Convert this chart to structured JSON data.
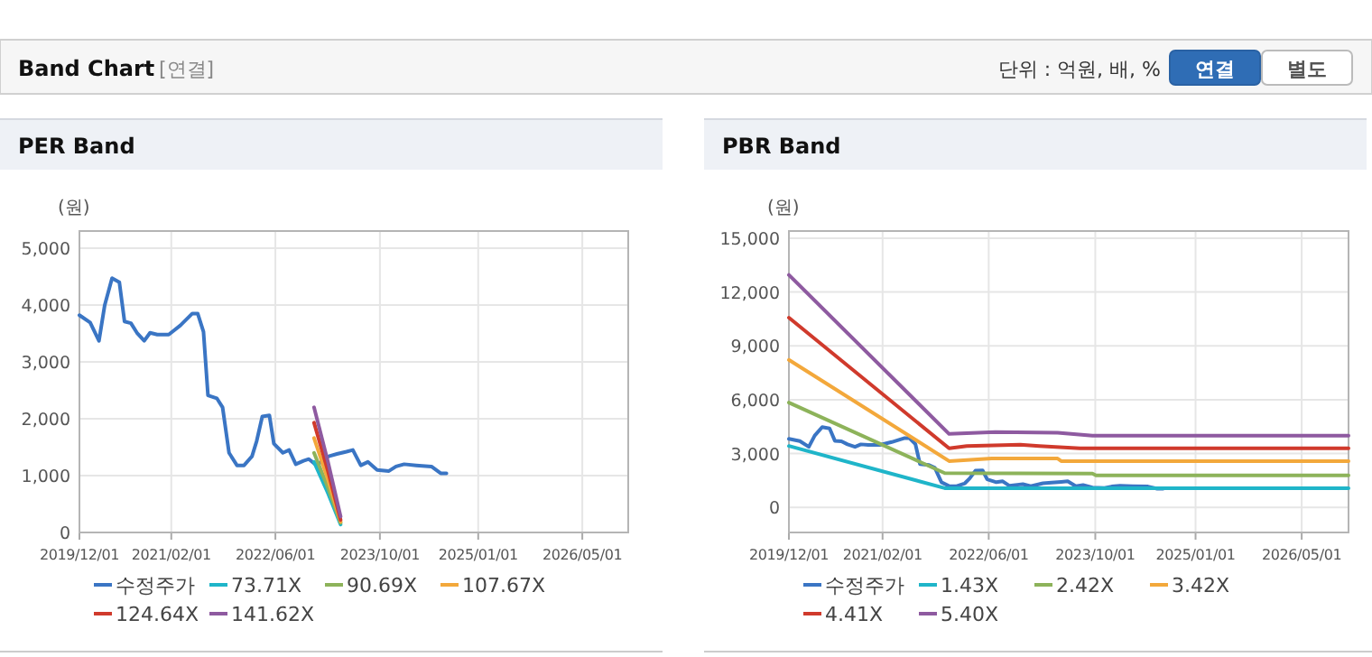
{
  "chart_data": [
    {
      "type": "other",
      "title": "Band Chart",
      "annotations": [
        "[연결]",
        "단위 : 억원, 배, %",
        "연결",
        "별도"
      ]
    },
    {
      "type": "line",
      "title": "PER Band",
      "ylabel": "(원)",
      "grid": true,
      "legend": "bottom",
      "xlim": [
        "2019-12-01",
        "2026-12-01"
      ],
      "xticks": [
        {
          "value": "2019-12-01",
          "label": "2019/12/01"
        },
        {
          "value": "2021-02-01",
          "label": "2021/02/01"
        },
        {
          "value": "2022-06-01",
          "label": "2022/06/01"
        },
        {
          "value": "2023-10-01",
          "label": "2023/10/01"
        },
        {
          "value": "2025-01-01",
          "label": "2025/01/01"
        },
        {
          "value": "2026-05-01",
          "label": "2026/05/01"
        }
      ],
      "ylim": [
        0,
        5300
      ],
      "yticks": [
        0,
        {
          "value": 1000,
          "label": "1,000"
        },
        {
          "value": 2000,
          "label": "2,000"
        },
        {
          "value": 3000,
          "label": "3,000"
        },
        {
          "value": 4000,
          "label": "4,000"
        },
        {
          "value": 5000,
          "label": "5,000"
        }
      ],
      "series": [
        {
          "name": "수정주가",
          "color": "#3a75c4",
          "x": [
            "2019-12-01",
            "2020-01-20",
            "2020-03-01",
            "2020-03-28",
            "2020-05-01",
            "2020-06-04",
            "2020-06-28",
            "2020-07-28",
            "2020-08-25",
            "2020-09-28",
            "2020-10-25",
            "2020-11-28",
            "2021-01-20",
            "2021-03-15",
            "2021-05-10",
            "2021-06-04",
            "2021-07-01",
            "2021-07-22",
            "2021-09-01",
            "2021-09-28",
            "2021-10-28",
            "2021-12-04",
            "2022-01-06",
            "2022-02-12",
            "2022-03-06",
            "2022-04-01",
            "2022-05-04",
            "2022-05-25",
            "2022-07-06",
            "2022-08-04",
            "2022-09-04",
            "2022-10-10",
            "2022-11-04",
            "2022-12-10",
            "2023-02-04",
            "2023-03-15",
            "2023-04-28",
            "2023-05-28",
            "2023-07-04",
            "2023-08-06",
            "2023-09-18",
            "2023-11-12",
            "2023-12-15",
            "2024-01-22",
            "2024-03-18",
            "2024-05-28",
            "2024-07-10",
            "2024-08-06"
          ],
          "values": [
            3820,
            3690,
            3370,
            4000,
            4470,
            4400,
            3710,
            3680,
            3510,
            3370,
            3510,
            3480,
            3480,
            3640,
            3850,
            3850,
            3530,
            2410,
            2360,
            2200,
            1400,
            1180,
            1180,
            1340,
            1610,
            2040,
            2060,
            1560,
            1400,
            1450,
            1200,
            1260,
            1290,
            1180,
            1340,
            1380,
            1420,
            1450,
            1180,
            1240,
            1100,
            1080,
            1160,
            1200,
            1180,
            1160,
            1040,
            1040
          ]
        },
        {
          "name": "73.71X",
          "color": "#1fb5c9",
          "x": [
            "2022-11-28",
            "2023-02-01",
            "2023-04-01"
          ],
          "values": [
            1240,
            690,
            140
          ]
        },
        {
          "name": "90.69X",
          "color": "#8db35a",
          "x": [
            "2022-11-28",
            "2023-02-01",
            "2023-04-01"
          ],
          "values": [
            1400,
            790,
            170
          ]
        },
        {
          "name": "107.67X",
          "color": "#f3a83b",
          "x": [
            "2022-11-28",
            "2023-02-01",
            "2023-04-01"
          ],
          "values": [
            1660,
            930,
            190
          ]
        },
        {
          "name": "124.64X",
          "color": "#d03a2c",
          "x": [
            "2022-11-28",
            "2023-02-01",
            "2023-04-01"
          ],
          "values": [
            1930,
            1080,
            220
          ]
        },
        {
          "name": "141.62X",
          "color": "#8e5aa0",
          "x": [
            "2022-11-28",
            "2023-02-01",
            "2023-04-01"
          ],
          "values": [
            2200,
            1240,
            280
          ]
        }
      ]
    },
    {
      "type": "line",
      "title": "PBR Band",
      "ylabel": "(원)",
      "grid": true,
      "legend": "bottom",
      "xlim": [
        "2019-12-01",
        "2026-12-01"
      ],
      "xticks": [
        {
          "value": "2019-12-01",
          "label": "2019/12/01"
        },
        {
          "value": "2021-02-01",
          "label": "2021/02/01"
        },
        {
          "value": "2022-06-01",
          "label": "2022/06/01"
        },
        {
          "value": "2023-10-01",
          "label": "2023/10/01"
        },
        {
          "value": "2025-01-01",
          "label": "2025/01/01"
        },
        {
          "value": "2026-05-01",
          "label": "2026/05/01"
        }
      ],
      "ylim": [
        -1400,
        15400
      ],
      "yticks": [
        0,
        {
          "value": 3000,
          "label": "3,000"
        },
        {
          "value": 6000,
          "label": "6,000"
        },
        {
          "value": 9000,
          "label": "9,000"
        },
        {
          "value": 12000,
          "label": "12,000"
        },
        {
          "value": 15000,
          "label": "15,000"
        }
      ],
      "series": [
        {
          "name": "수정주가",
          "color": "#3a75c4",
          "x": [
            "2019-12-01",
            "2020-01-20",
            "2020-03-01",
            "2020-03-28",
            "2020-05-01",
            "2020-06-04",
            "2020-06-28",
            "2020-07-28",
            "2020-08-25",
            "2020-09-28",
            "2020-10-25",
            "2020-11-28",
            "2021-01-20",
            "2021-03-15",
            "2021-05-10",
            "2021-06-04",
            "2021-07-01",
            "2021-07-22",
            "2021-09-01",
            "2021-09-28",
            "2021-10-28",
            "2021-12-04",
            "2022-01-06",
            "2022-02-12",
            "2022-03-06",
            "2022-04-01",
            "2022-05-04",
            "2022-05-25",
            "2022-07-06",
            "2022-08-04",
            "2022-09-04",
            "2022-10-10",
            "2022-11-04",
            "2022-12-10",
            "2023-02-04",
            "2023-03-15",
            "2023-04-28",
            "2023-05-28",
            "2023-07-04",
            "2023-08-06",
            "2023-09-18",
            "2023-11-12",
            "2023-12-15",
            "2024-01-22",
            "2024-03-18",
            "2024-05-28",
            "2024-07-10",
            "2024-08-06"
          ],
          "values": [
            3820,
            3690,
            3370,
            4000,
            4470,
            4400,
            3710,
            3680,
            3510,
            3370,
            3510,
            3480,
            3480,
            3640,
            3850,
            3850,
            3530,
            2410,
            2360,
            2200,
            1400,
            1180,
            1180,
            1340,
            1610,
            2040,
            2060,
            1560,
            1400,
            1450,
            1200,
            1260,
            1290,
            1180,
            1340,
            1380,
            1420,
            1450,
            1180,
            1240,
            1100,
            1080,
            1160,
            1200,
            1180,
            1160,
            1040,
            1040
          ]
        },
        {
          "name": "1.43X",
          "color": "#1fb5c9",
          "x": [
            "2019-12-01",
            "2021-11-12",
            "2026-12-01"
          ],
          "values": [
            3420,
            1070,
            1070
          ]
        },
        {
          "name": "2.42X",
          "color": "#8db35a",
          "x": [
            "2019-12-01",
            "2021-11-12",
            "2023-09-18",
            "2023-10-04",
            "2026-12-01"
          ],
          "values": [
            5840,
            1910,
            1880,
            1780,
            1780
          ]
        },
        {
          "name": "3.42X",
          "color": "#f3a83b",
          "x": [
            "2019-12-01",
            "2021-12-02",
            "2022-06-15",
            "2023-04-12",
            "2023-04-28",
            "2026-12-01"
          ],
          "values": [
            8220,
            2580,
            2720,
            2720,
            2580,
            2580
          ]
        },
        {
          "name": "4.41X",
          "color": "#d03a2c",
          "x": [
            "2019-12-01",
            "2021-12-02",
            "2022-02-21",
            "2022-10-23",
            "2023-01-18",
            "2023-07-23",
            "2026-12-01"
          ],
          "values": [
            10570,
            3290,
            3420,
            3490,
            3420,
            3290,
            3290
          ]
        },
        {
          "name": "5.40X",
          "color": "#8e5aa0",
          "x": [
            "2019-12-01",
            "2021-12-02",
            "2022-07-01",
            "2023-04-12",
            "2023-09-18",
            "2026-12-01"
          ],
          "values": [
            12950,
            4090,
            4190,
            4160,
            3990,
            3990
          ]
        }
      ]
    }
  ]
}
